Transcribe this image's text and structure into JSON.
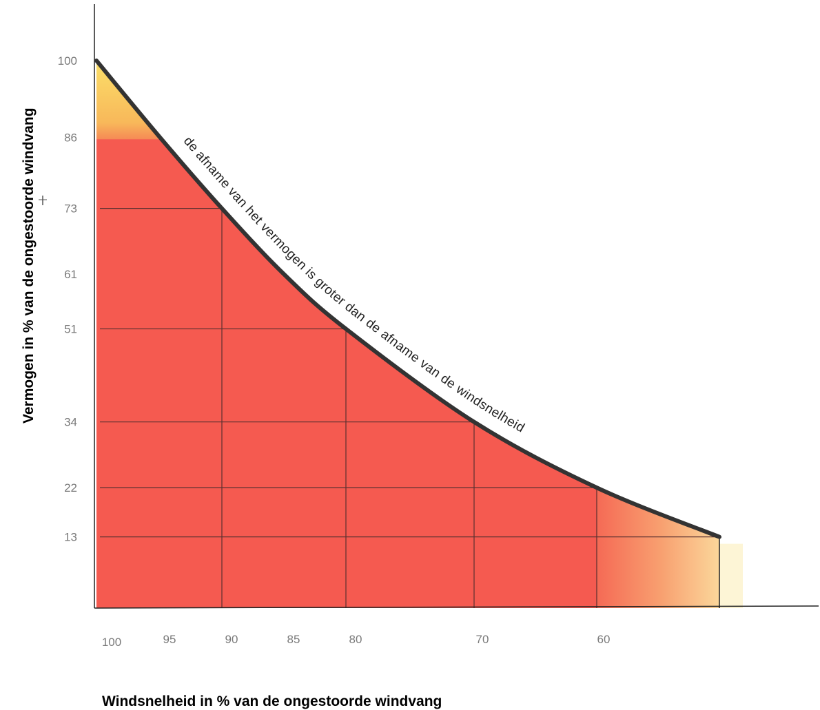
{
  "chart_data": {
    "type": "area",
    "title": "",
    "xlabel": "Windsnelheid in % van de ongestoorde windvang",
    "ylabel": "Vermogen in % van de ongestoorde windvang",
    "x_ticks": [
      "100",
      "95",
      "90",
      "85",
      "80",
      "70",
      "60"
    ],
    "y_ticks": [
      "100",
      "86",
      "73",
      "61",
      "51",
      "34",
      "22",
      "13"
    ],
    "series": [
      {
        "x": [
          100,
          95,
          90,
          85,
          80,
          70,
          60,
          50
        ],
        "y": [
          100,
          86,
          73,
          61,
          51,
          34,
          22,
          13
        ]
      }
    ],
    "annotation": "de afname van het vermogen is groter dan de afname van de windsnelheid",
    "grid_x": [
      90,
      80,
      70,
      60
    ],
    "grid_y": [
      73,
      51,
      34,
      22,
      13
    ],
    "colors": {
      "fill": "#f55a50",
      "fill_light": "#f88a6a",
      "highlight_yellow": "#fbe070",
      "curve": "#333333",
      "grid": "#5a3030",
      "axis": "#222222"
    }
  }
}
